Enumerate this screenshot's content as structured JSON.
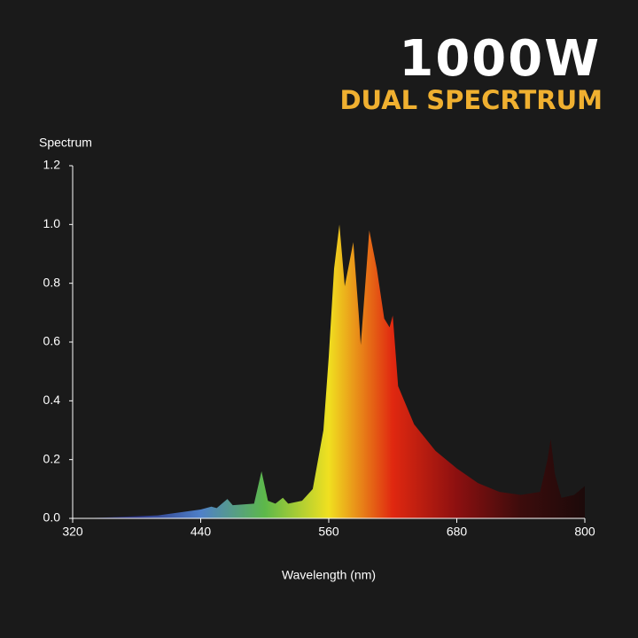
{
  "chart_data": {
    "type": "area",
    "title": "1000W",
    "subtitle": "DUAL SPECRTRUM",
    "y_label": "Spectrum",
    "x_label": "Wavelength (nm)",
    "x": [
      330,
      350,
      400,
      440,
      450,
      455,
      465,
      470,
      490,
      497,
      503,
      510,
      517,
      522,
      535,
      545,
      555,
      560,
      565,
      570,
      575,
      583,
      588,
      590,
      598,
      605,
      612,
      617,
      620,
      625,
      640,
      660,
      680,
      700,
      720,
      740,
      758,
      765,
      768,
      772,
      778,
      790,
      800
    ],
    "values": [
      0,
      0.003,
      0.01,
      0.03,
      0.04,
      0.035,
      0.066,
      0.045,
      0.05,
      0.16,
      0.06,
      0.05,
      0.07,
      0.05,
      0.06,
      0.1,
      0.3,
      0.55,
      0.85,
      1.0,
      0.79,
      0.94,
      0.7,
      0.59,
      0.98,
      0.85,
      0.68,
      0.65,
      0.69,
      0.45,
      0.32,
      0.23,
      0.17,
      0.12,
      0.09,
      0.08,
      0.09,
      0.2,
      0.27,
      0.15,
      0.07,
      0.08,
      0.11
    ],
    "colors": [
      "#1c1c3c",
      "#2a3280",
      "#4f80c8",
      "#5db84a",
      "#f0e020",
      "#e02810",
      "#8c1010",
      "#3c0c0c",
      "#1c0a0a"
    ],
    "xlim": [
      320,
      800
    ],
    "ylim": [
      0,
      1.2
    ],
    "xticks": [
      320,
      440,
      560,
      680,
      800
    ],
    "yticks": [
      {
        "value": 0,
        "label": "0.0"
      },
      {
        "value": 0.2,
        "label": "0.2"
      },
      {
        "value": 0.4,
        "label": "0.4"
      },
      {
        "value": 0.6,
        "label": "0.6"
      },
      {
        "value": 0.8,
        "label": "0.8"
      },
      {
        "value": 1.0,
        "label": "1.0"
      },
      {
        "value": 1.2,
        "label": "1.2"
      }
    ]
  }
}
